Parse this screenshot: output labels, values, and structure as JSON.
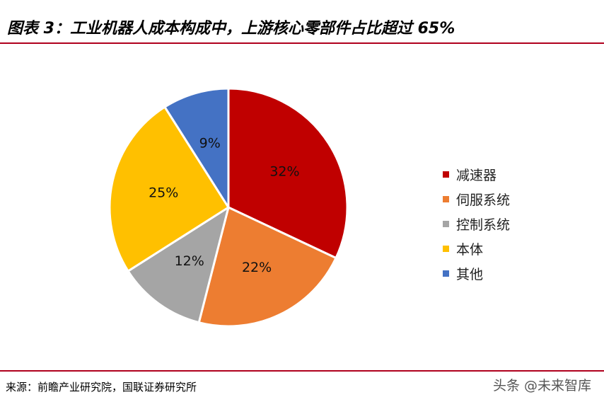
{
  "title": "图表 3：工业机器人成本构成中，上游核心零部件占比超过 65%",
  "source": "来源：前瞻产业研究院，国联证券研究所",
  "watermark": "头条 @未来智库",
  "colors": {
    "rule": "#b0001d"
  },
  "chart_data": {
    "type": "pie",
    "title": "",
    "start_angle_deg": 0,
    "direction": "clockwise",
    "legend_position": "right",
    "slices": [
      {
        "name": "减速器",
        "value": 32,
        "label": "32%",
        "color": "#c00000"
      },
      {
        "name": "伺服系统",
        "value": 22,
        "label": "22%",
        "color": "#ed7d31"
      },
      {
        "name": "控制系统",
        "value": 12,
        "label": "12%",
        "color": "#a5a5a5"
      },
      {
        "name": "本体",
        "value": 25,
        "label": "25%",
        "color": "#ffc000"
      },
      {
        "name": "其他",
        "value": 9,
        "label": "9%",
        "color": "#4472c4"
      }
    ]
  }
}
